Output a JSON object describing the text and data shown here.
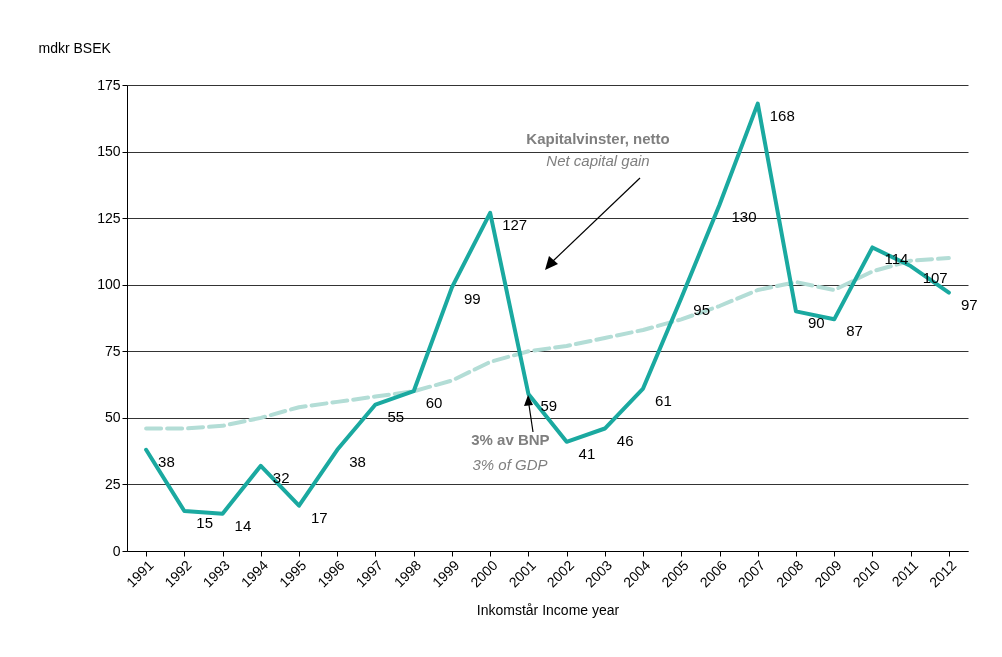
{
  "chart_data": {
    "type": "line",
    "xlabel": "Inkomstår  Income year",
    "ylabel": "mdkr  BSEK",
    "categories": [
      "1991",
      "1992",
      "1993",
      "1994",
      "1995",
      "1996",
      "1997",
      "1998",
      "1999",
      "2000",
      "2001",
      "2002",
      "2003",
      "2004",
      "2005",
      "2006",
      "2007",
      "2008",
      "2009",
      "2010",
      "2011",
      "2012"
    ],
    "series": [
      {
        "color": "#b3ddd6",
        "line_style": "dashed",
        "values": [
          46,
          46,
          47,
          50,
          54,
          56,
          58,
          60,
          64,
          71,
          75,
          77,
          80,
          83,
          87,
          92,
          98,
          101,
          98,
          105,
          109,
          110
        ]
      },
      {
        "color": "#1aa9a0",
        "line_style": "solid",
        "data_labels": true,
        "values": [
          38,
          15,
          14,
          32,
          17,
          38,
          55,
          60,
          99,
          127,
          59,
          41,
          46,
          61,
          95,
          130,
          168,
          90,
          87,
          114,
          107,
          97
        ]
      }
    ],
    "annotations": [
      "Kapitalvinster, netto",
      "Net capital gain",
      {
        "text": "3% av BNP",
        "x": "2001",
        "y": 59
      },
      "3% of GDP"
    ],
    "ylim": [
      0,
      175
    ],
    "yticks": [
      0,
      25,
      50,
      75,
      100,
      125,
      150,
      175
    ],
    "grid": "y"
  }
}
